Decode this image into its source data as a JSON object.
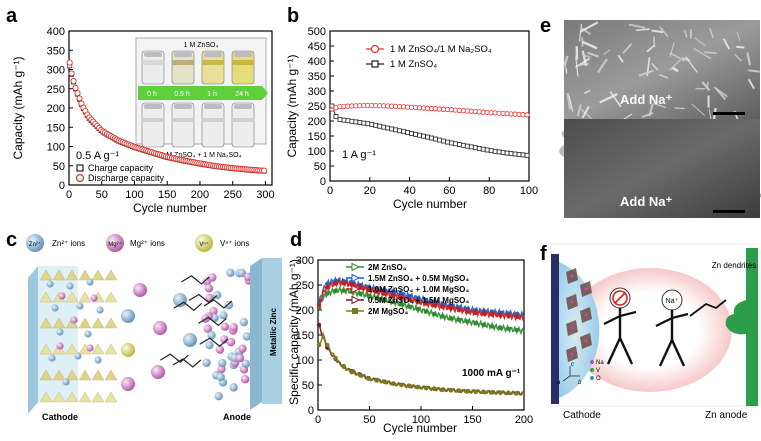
{
  "panels": {
    "a": {
      "letter": "a",
      "ylabel": "Capacity (mAh g⁻¹)",
      "xlabel": "Cycle number",
      "xticks": [
        "0",
        "50",
        "100",
        "150",
        "200",
        "250",
        "300"
      ],
      "yticks": [
        "0",
        "50",
        "100",
        "150",
        "200",
        "250",
        "300",
        "350",
        "400"
      ],
      "rate": "0.5 A g⁻¹",
      "legend": [
        "Charge capacity",
        "Discharge capacity"
      ],
      "inset_top": "1 M ZnSO₄",
      "inset_times": [
        "0 h",
        "0.5 h",
        "1 h",
        "24 h"
      ],
      "inset_bottom": "1 M ZnSO₄ + 1 M Na₂SO₄"
    },
    "b": {
      "letter": "b",
      "ylabel": "Capacity (mAh g⁻¹)",
      "xlabel": "Cycle number",
      "xticks": [
        "0",
        "20",
        "40",
        "60",
        "80",
        "100"
      ],
      "yticks": [
        "0",
        "50",
        "100",
        "150",
        "200",
        "250",
        "300",
        "350",
        "400",
        "450",
        "500"
      ],
      "rate": "1 A g⁻¹",
      "legend": [
        "1 M ZnSO₄/1 M Na₂SO₄",
        "1 M ZnSO₄"
      ]
    },
    "c": {
      "letter": "c",
      "legend": [
        "Zn²⁺ ions",
        "Mg²⁺ ions",
        "Vⁿ⁺ ions"
      ],
      "ball_zn": "Zn²⁺",
      "ball_mg": "Mg²⁺",
      "ball_v": "Vⁿ⁺",
      "cathode": "Cathode",
      "anode": "Anode",
      "metallic": "Metallic Zinc"
    },
    "d": {
      "letter": "d",
      "ylabel": "Specific capacity (mAh g⁻¹)",
      "xlabel": "Cycle number",
      "xticks": [
        "0",
        "50",
        "100",
        "150",
        "200"
      ],
      "yticks": [
        "0",
        "50",
        "100",
        "150",
        "200",
        "250",
        "300"
      ],
      "rate": "1000 mA g⁻¹",
      "legend": [
        "2M ZnSO₄",
        "1.5M ZnSO₄ + 0.5M MgSO₄",
        "1.0M ZnSO₄ + 1.0M MgSO₄",
        "0.5M ZnSO₄ + 1.5M MgSO₄",
        "2M MgSO₄"
      ]
    },
    "e": {
      "letter": "e",
      "top_label": "Add Na⁺",
      "bottom_label": "Add Na⁺"
    },
    "f": {
      "letter": "f",
      "cathode": "Cathode",
      "anode": "Zn anode",
      "dendrites": "Zn dendrites",
      "na": "Na⁺",
      "axes": [
        "c",
        "a",
        "b"
      ],
      "species": [
        "Na",
        "V",
        "O"
      ]
    }
  },
  "chart_data": [
    {
      "panel": "a",
      "type": "scatter",
      "xlabel": "Cycle number",
      "ylabel": "Capacity (mAh g⁻¹)",
      "xlim": [
        0,
        310
      ],
      "ylim": [
        0,
        400
      ],
      "series": [
        {
          "name": "Charge capacity",
          "color": "#222222",
          "x": [
            1,
            3,
            5,
            10,
            20,
            30,
            50,
            75,
            100,
            125,
            150,
            175,
            200,
            225,
            250,
            275,
            300
          ],
          "values": [
            310,
            295,
            280,
            250,
            205,
            175,
            140,
            115,
            98,
            85,
            72,
            63,
            55,
            48,
            43,
            39,
            36
          ]
        },
        {
          "name": "Discharge capacity",
          "color": "#e0302a",
          "x": [
            1,
            3,
            5,
            10,
            20,
            30,
            50,
            75,
            100,
            125,
            150,
            175,
            200,
            225,
            250,
            275,
            300
          ],
          "values": [
            318,
            298,
            282,
            252,
            207,
            177,
            141,
            116,
            99,
            86,
            73,
            64,
            56,
            49,
            44,
            40,
            37
          ]
        }
      ]
    },
    {
      "panel": "b",
      "type": "scatter",
      "xlabel": "Cycle number",
      "ylabel": "Capacity (mAh g⁻¹)",
      "xlim": [
        0,
        100
      ],
      "ylim": [
        0,
        500
      ],
      "series": [
        {
          "name": "1 M ZnSO₄/1 M Na₂SO₄",
          "color": "#e0302a",
          "x": [
            1,
            5,
            10,
            20,
            30,
            40,
            50,
            60,
            70,
            80,
            90,
            100
          ],
          "values": [
            240,
            248,
            250,
            252,
            250,
            246,
            242,
            238,
            233,
            228,
            224,
            220
          ]
        },
        {
          "name": "1 M ZnSO₄",
          "color": "#222222",
          "x": [
            1,
            3,
            5,
            10,
            20,
            30,
            40,
            50,
            60,
            70,
            80,
            90,
            100
          ],
          "values": [
            250,
            215,
            205,
            200,
            190,
            175,
            160,
            145,
            128,
            115,
            102,
            92,
            85
          ]
        }
      ]
    },
    {
      "panel": "d",
      "type": "line",
      "xlabel": "Cycle number",
      "ylabel": "Specific capacity (mAh g⁻¹)",
      "xlim": [
        0,
        200
      ],
      "ylim": [
        0,
        300
      ],
      "series": [
        {
          "name": "2M ZnSO₄",
          "color": "#2e8b2e",
          "x": [
            1,
            5,
            10,
            20,
            30,
            50,
            75,
            100,
            125,
            150,
            175,
            200
          ],
          "values": [
            205,
            225,
            235,
            240,
            238,
            228,
            215,
            200,
            185,
            175,
            165,
            158
          ]
        },
        {
          "name": "1.5M ZnSO₄ + 0.5M MgSO₄",
          "color": "#1f5fc8",
          "x": [
            1,
            5,
            10,
            20,
            30,
            50,
            75,
            100,
            125,
            150,
            175,
            200
          ],
          "values": [
            215,
            240,
            255,
            260,
            255,
            245,
            235,
            222,
            210,
            200,
            195,
            190
          ]
        },
        {
          "name": "1.0M ZnSO₄ + 1.0M MgSO₄",
          "color": "#c81e1e",
          "x": [
            1,
            5,
            10,
            20,
            30,
            50,
            75,
            100,
            125,
            150,
            175,
            200
          ],
          "values": [
            210,
            235,
            248,
            255,
            252,
            240,
            228,
            215,
            205,
            195,
            190,
            185
          ]
        },
        {
          "name": "0.5M ZnSO₄ + 1.5M MgSO₄",
          "color": "#6b1f2a",
          "x": [
            1,
            5,
            10,
            20,
            30,
            50,
            75,
            100,
            125,
            150,
            175,
            200
          ],
          "values": [
            170,
            145,
            120,
            95,
            80,
            63,
            52,
            45,
            40,
            37,
            35,
            33
          ]
        },
        {
          "name": "2M MgSO₄",
          "color": "#7a7a1a",
          "x": [
            1,
            5,
            10,
            20,
            30,
            50,
            75,
            100,
            125,
            150,
            175,
            200
          ],
          "values": [
            130,
            150,
            125,
            95,
            78,
            62,
            52,
            45,
            40,
            37,
            35,
            33
          ]
        }
      ]
    }
  ]
}
